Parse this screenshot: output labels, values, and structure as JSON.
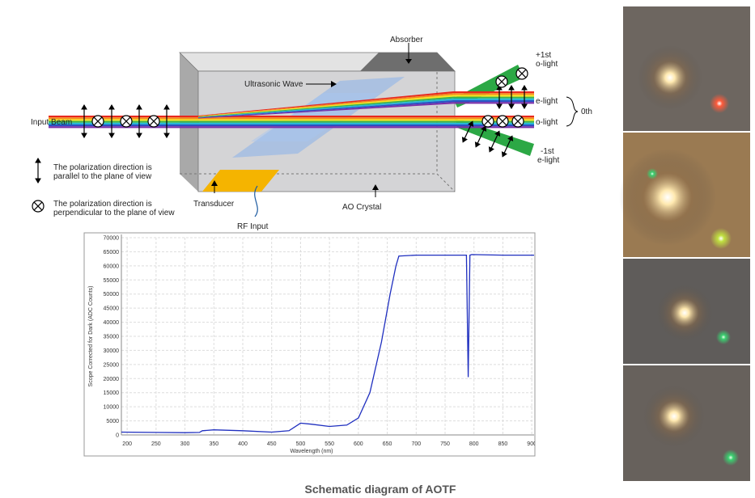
{
  "diagram": {
    "absorber": "Absorber",
    "ultrasonic_wave": "Ultrasonic Wave",
    "input_beam": "Input Beam",
    "plus_first": "+1st",
    "plus_first_light": "o-light",
    "zero_e_light": "e-light",
    "zero_order": "0th",
    "zero_o_light": "o-light",
    "minus_first": "-1st",
    "minus_first_light": "e-light",
    "legend_parallel": [
      "The polarization direction is",
      "parallel to the plane of view"
    ],
    "legend_perpendicular": [
      "The polarization direction is",
      "perpendicular to the plane of view"
    ],
    "transducer": "Transducer",
    "rf_input": "RF Input",
    "ao_crystal": "AO Crystal"
  },
  "chart_data": {
    "type": "line",
    "x_label": "Wavelength (nm)",
    "y_label": "Scope Corrected for Dark (ADC Counts)",
    "xlim": [
      190,
      904
    ],
    "ylim": [
      0,
      70000
    ],
    "xticks": [
      200,
      250,
      300,
      350,
      400,
      450,
      500,
      550,
      600,
      650,
      700,
      750,
      800,
      850,
      900
    ],
    "yticks": [
      0,
      5000,
      10000,
      15000,
      20000,
      25000,
      30000,
      35000,
      40000,
      45000,
      50000,
      55000,
      60000,
      65000,
      70000
    ],
    "grid": true,
    "color": "#1f2fbf",
    "x": [
      190,
      250,
      300,
      325,
      330,
      350,
      400,
      450,
      480,
      500,
      520,
      550,
      580,
      600,
      620,
      640,
      655,
      665,
      670,
      700,
      750,
      787,
      790,
      793,
      796,
      850,
      904
    ],
    "values": [
      1000,
      900,
      800,
      900,
      1500,
      1800,
      1500,
      1000,
      1500,
      4200,
      3800,
      3000,
      3500,
      6000,
      15000,
      33000,
      50000,
      60000,
      63500,
      63800,
      63800,
      63800,
      20500,
      63800,
      64000,
      63800,
      63800
    ]
  },
  "caption": "Schematic diagram of AOTF"
}
